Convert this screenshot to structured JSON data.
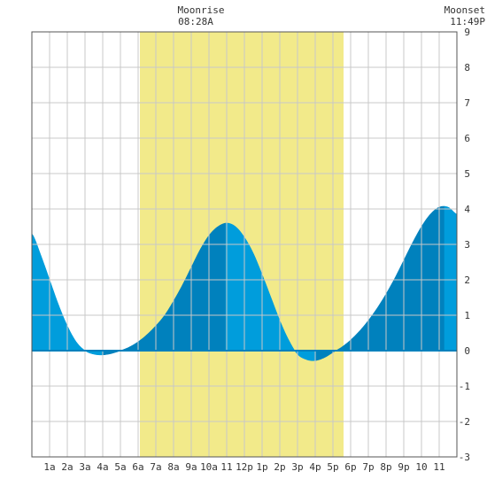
{
  "moonrise": {
    "label": "Moonrise",
    "time": "08:28A"
  },
  "moonset": {
    "label": "Moonset",
    "time": "11:49P"
  },
  "chart_data": {
    "type": "area",
    "title": "",
    "xlabel": "",
    "ylabel": "",
    "xlim": [
      0,
      24
    ],
    "ylim": [
      -3,
      9
    ],
    "yticks": [
      -3,
      -2,
      -1,
      0,
      1,
      2,
      3,
      4,
      5,
      6,
      7,
      8,
      9
    ],
    "xticks": [
      {
        "h": 1,
        "label": "1a"
      },
      {
        "h": 2,
        "label": "2a"
      },
      {
        "h": 3,
        "label": "3a"
      },
      {
        "h": 4,
        "label": "4a"
      },
      {
        "h": 5,
        "label": "5a"
      },
      {
        "h": 6,
        "label": "6a"
      },
      {
        "h": 7,
        "label": "7a"
      },
      {
        "h": 8,
        "label": "8a"
      },
      {
        "h": 9,
        "label": "9a"
      },
      {
        "h": 10,
        "label": "10a"
      },
      {
        "h": 11,
        "label": "11"
      },
      {
        "h": 12,
        "label": "12p"
      },
      {
        "h": 13,
        "label": "1p"
      },
      {
        "h": 14,
        "label": "2p"
      },
      {
        "h": 15,
        "label": "3p"
      },
      {
        "h": 16,
        "label": "4p"
      },
      {
        "h": 17,
        "label": "5p"
      },
      {
        "h": 18,
        "label": "6p"
      },
      {
        "h": 19,
        "label": "7p"
      },
      {
        "h": 20,
        "label": "8p"
      },
      {
        "h": 21,
        "label": "9p"
      },
      {
        "h": 22,
        "label": "10"
      },
      {
        "h": 23,
        "label": "11"
      }
    ],
    "tide_extremes": [
      {
        "time_h": 4.0,
        "height": -0.1,
        "kind": "low"
      },
      {
        "time_h": 10.95,
        "height": 3.6,
        "kind": "high"
      },
      {
        "time_h": 16.05,
        "height": -0.27,
        "kind": "low"
      },
      {
        "time_h": 23.3,
        "height": 4.05,
        "kind": "high"
      }
    ],
    "series": [
      {
        "type": "area",
        "x": [
          0,
          0.5,
          1,
          1.5,
          2,
          2.5,
          3,
          3.5,
          4,
          4.5,
          5,
          5.5,
          6,
          6.5,
          7,
          7.5,
          8,
          8.5,
          9,
          9.5,
          10,
          10.5,
          11,
          11.5,
          12,
          12.5,
          13,
          13.5,
          14,
          14.5,
          15,
          15.5,
          16,
          16.5,
          17,
          17.5,
          18,
          18.5,
          19,
          19.5,
          20,
          20.5,
          21,
          21.5,
          22,
          22.5,
          23,
          23.5,
          24
        ],
        "y": [
          3.3,
          2.7,
          2.0,
          1.3,
          0.7,
          0.25,
          0.0,
          -0.1,
          -0.12,
          -0.08,
          0.0,
          0.1,
          0.25,
          0.45,
          0.7,
          1.0,
          1.4,
          1.85,
          2.35,
          2.85,
          3.25,
          3.5,
          3.6,
          3.5,
          3.2,
          2.75,
          2.15,
          1.5,
          0.85,
          0.3,
          -0.1,
          -0.25,
          -0.28,
          -0.2,
          -0.05,
          0.1,
          0.3,
          0.55,
          0.85,
          1.2,
          1.6,
          2.05,
          2.55,
          3.05,
          3.5,
          3.85,
          4.05,
          4.05,
          3.85
        ]
      }
    ],
    "daylight_band": {
      "start_h": 6.1,
      "end_h": 17.6
    },
    "colors": {
      "daylight": "#f2ea8a",
      "tide_light": "#009ddc",
      "tide_dark": "#0081bd",
      "grid": "#c8c8c8",
      "axis": "#555555",
      "text": "#333333"
    }
  }
}
